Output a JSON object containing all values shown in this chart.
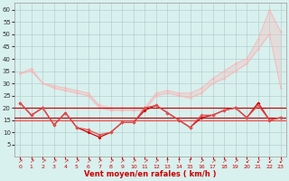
{
  "x": [
    0,
    1,
    2,
    3,
    4,
    5,
    6,
    7,
    8,
    9,
    10,
    11,
    12,
    13,
    14,
    15,
    16,
    17,
    18,
    19,
    20,
    21,
    22,
    23
  ],
  "rafales_top": [
    34,
    36,
    30,
    29,
    28,
    27,
    26,
    21,
    20,
    20,
    20,
    20,
    26,
    27,
    26,
    26,
    28,
    32,
    35,
    38,
    40,
    48,
    60,
    51
  ],
  "rafales_bot": [
    34,
    35,
    30,
    28,
    27,
    26,
    25,
    20,
    19,
    19,
    19,
    19,
    25,
    26,
    25,
    24,
    26,
    30,
    32,
    35,
    38,
    44,
    50,
    28
  ],
  "vent_dark": [
    22,
    17,
    20,
    13,
    18,
    12,
    10,
    8,
    10,
    14,
    14,
    19,
    21,
    18,
    15,
    12,
    16,
    17,
    19,
    20,
    16,
    22,
    15,
    16
  ],
  "vent_med": [
    22,
    17,
    20,
    13,
    18,
    12,
    11,
    9,
    10,
    14,
    14,
    20,
    21,
    18,
    15,
    12,
    17,
    17,
    19,
    20,
    16,
    21,
    15,
    16
  ],
  "hline_dark1": 20,
  "hline_dark2": 16,
  "hline_med": 15,
  "xlabel": "Vent moyen/en rafales ( km/h )",
  "ylim": [
    0,
    63
  ],
  "yticks": [
    5,
    10,
    15,
    20,
    25,
    30,
    35,
    40,
    45,
    50,
    55,
    60
  ],
  "xticks": [
    0,
    1,
    2,
    3,
    4,
    5,
    6,
    7,
    8,
    9,
    10,
    11,
    12,
    13,
    14,
    15,
    16,
    17,
    18,
    19,
    20,
    21,
    22,
    23
  ],
  "arrows": [
    "↗",
    "↗",
    "↗",
    "↗",
    "↗",
    "↗",
    "↗",
    "↗",
    "↗",
    "↗",
    "↗",
    "↗",
    "↗",
    "↑",
    "↑",
    "↑",
    "↗",
    "↗",
    "↗",
    "↗",
    "↙",
    "↙",
    "↙",
    "↙"
  ],
  "bg_color": "#d8f0ee",
  "color_light": "#f5b8b8",
  "color_med": "#e05050",
  "color_dark": "#cc0000",
  "grid_color": "#b0c8c8"
}
